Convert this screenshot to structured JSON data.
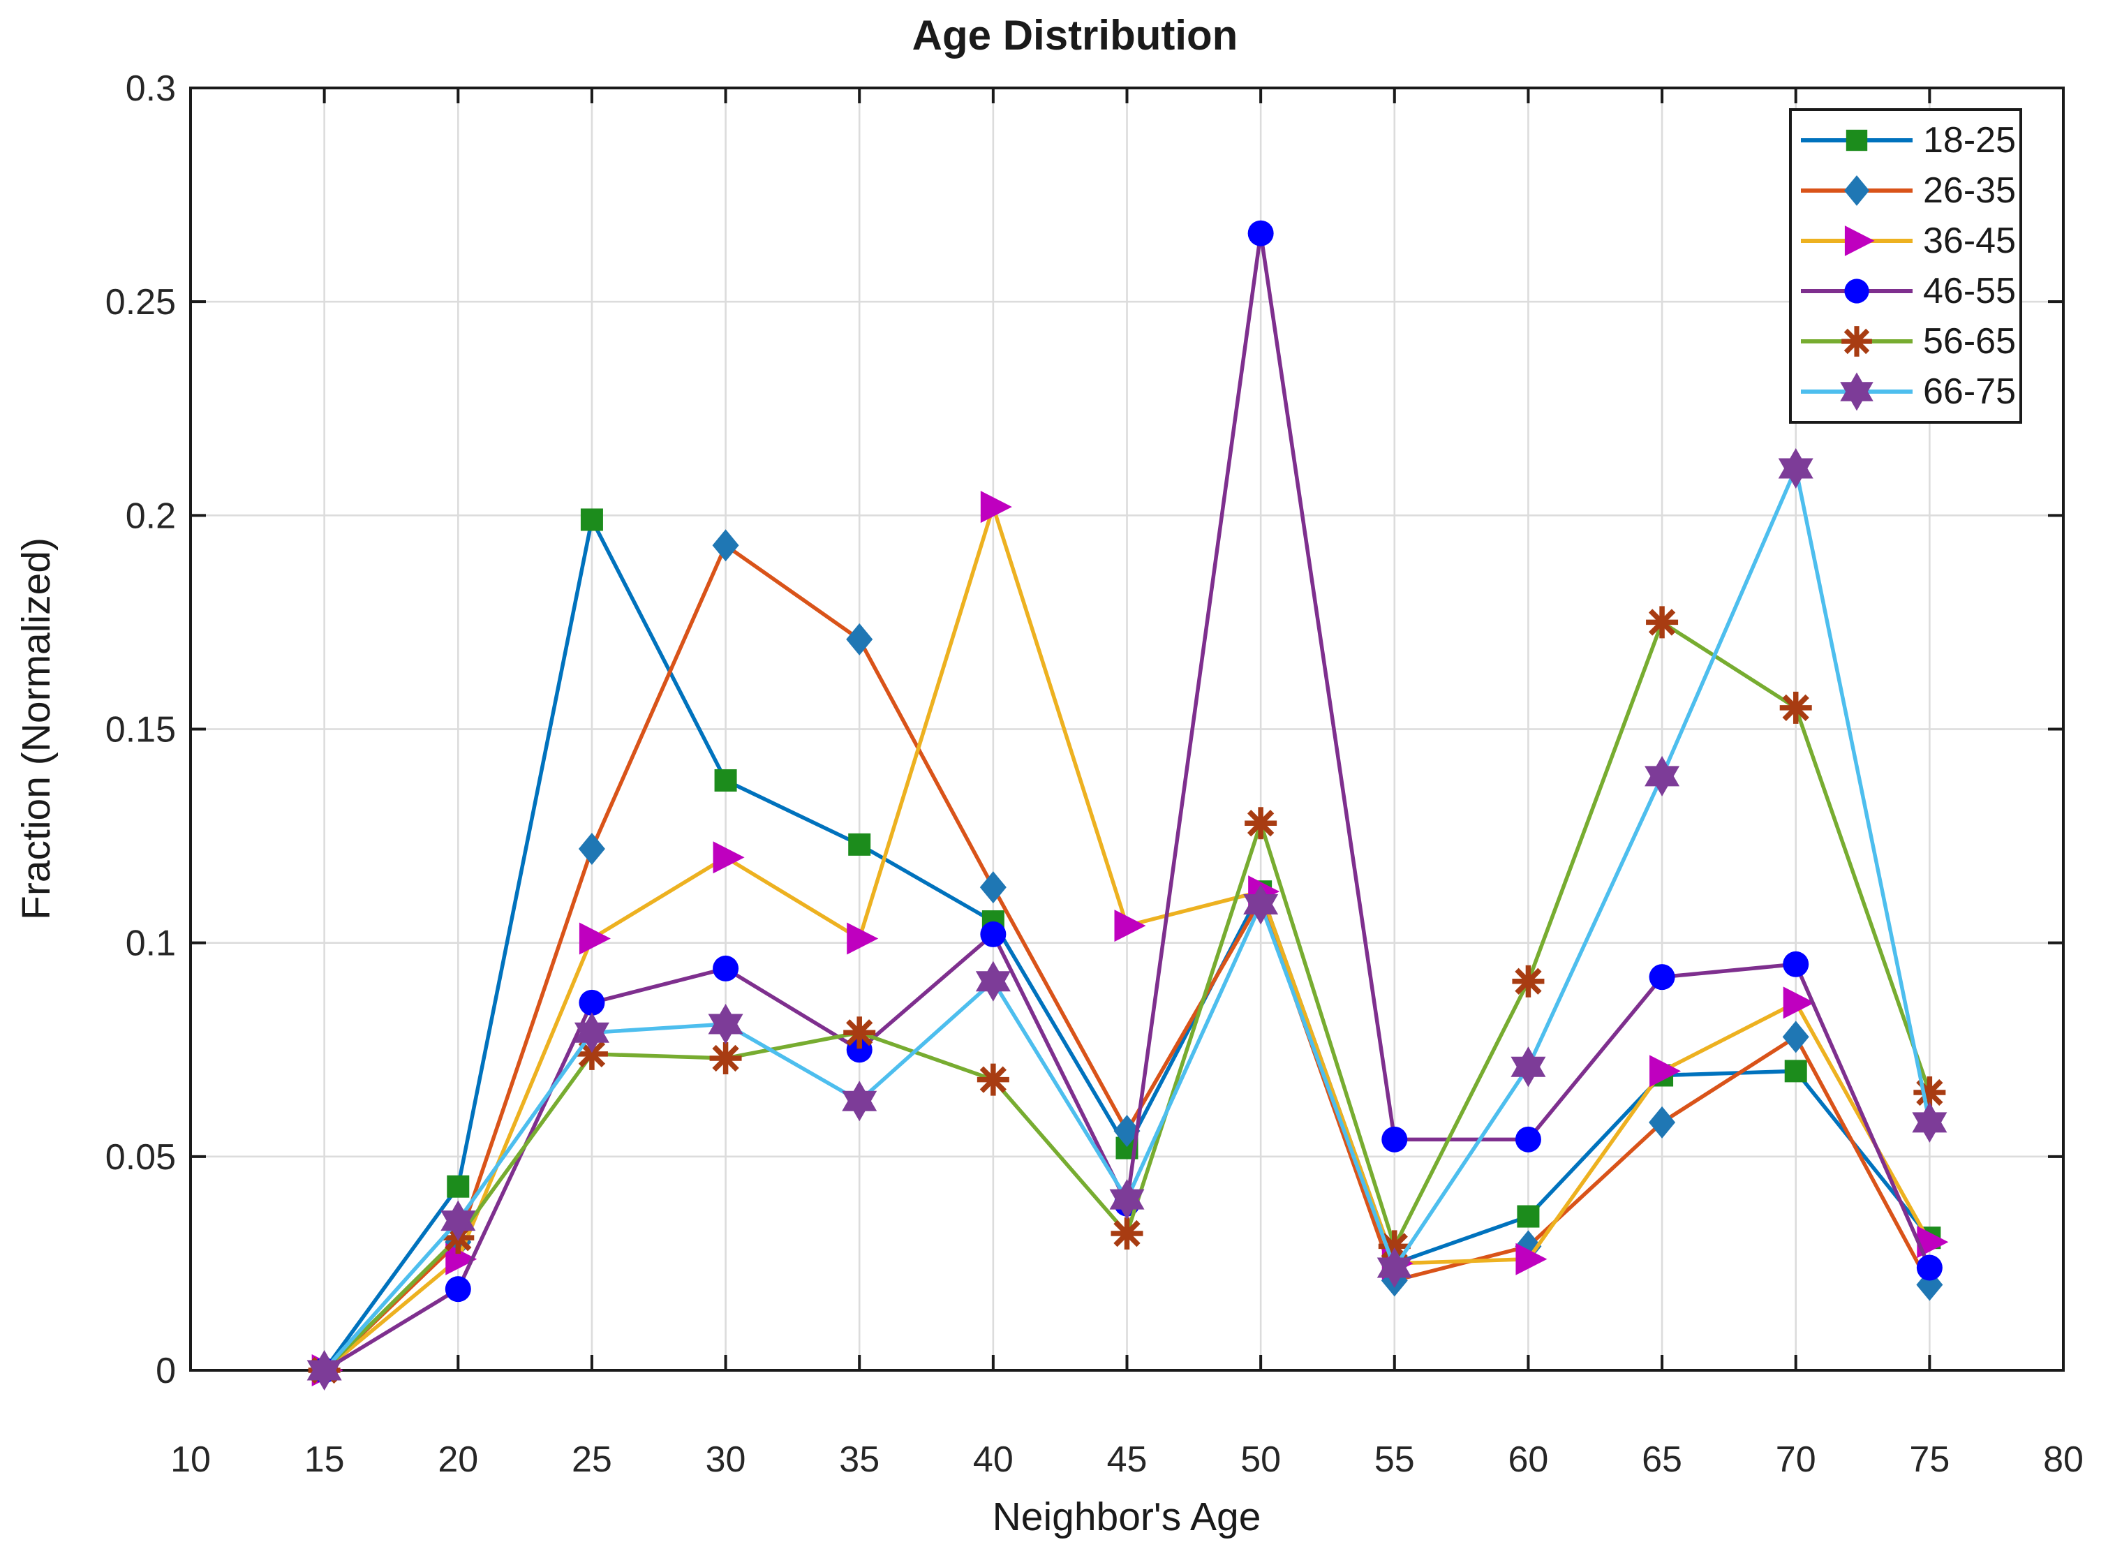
{
  "figure": {
    "title": "Age Distribution",
    "background_color": "#ffffff"
  },
  "axes": {
    "xlabel": "Neighbor's Age",
    "ylabel": "Fraction (Normalized)",
    "x_tick_labels": [
      "10",
      "15",
      "20",
      "25",
      "30",
      "35",
      "40",
      "45",
      "50",
      "55",
      "60",
      "65",
      "70",
      "75",
      "80"
    ],
    "y_tick_labels": [
      "0",
      "0.05",
      "0.1",
      "0.15",
      "0.2",
      "0.25",
      "0.3"
    ],
    "axis_color": "#1a1a1a",
    "grid_color": "#dcdcdc",
    "tick_label_color": "#262626"
  },
  "legend": {
    "position": "top-right",
    "labels": [
      "18-25",
      "26-35",
      "36-45",
      "46-55",
      "56-65",
      "66-75"
    ]
  },
  "chart_data": {
    "type": "line",
    "title": "Age Distribution",
    "xlabel": "Neighbor's Age",
    "ylabel": "Fraction (Normalized)",
    "xlim": [
      10,
      80
    ],
    "ylim": [
      0,
      0.3
    ],
    "x_tick_step": 5,
    "y_tick_step": 0.05,
    "grid": true,
    "legend_position": "top-right",
    "x": [
      15,
      20,
      25,
      30,
      35,
      40,
      45,
      50,
      55,
      60,
      65,
      70,
      75
    ],
    "series": [
      {
        "name": "18-25",
        "line_color": "#0072BD",
        "marker": "square",
        "marker_color": "#1C8C1C",
        "values": [
          0,
          0.043,
          0.199,
          0.138,
          0.123,
          0.105,
          0.052,
          0.112,
          0.025,
          0.036,
          0.069,
          0.07,
          0.031
        ]
      },
      {
        "name": "26-35",
        "line_color": "#D95319",
        "marker": "diamond",
        "marker_color": "#1F77B4",
        "values": [
          0,
          0.03,
          0.122,
          0.193,
          0.171,
          0.113,
          0.056,
          0.11,
          0.021,
          0.029,
          0.058,
          0.078,
          0.02
        ]
      },
      {
        "name": "36-45",
        "line_color": "#EDB120",
        "marker": "triangle-right",
        "marker_color": "#BF00BF",
        "values": [
          0,
          0.026,
          0.101,
          0.12,
          0.101,
          0.202,
          0.104,
          0.112,
          0.025,
          0.026,
          0.07,
          0.086,
          0.03
        ]
      },
      {
        "name": "46-55",
        "line_color": "#7E2F8E",
        "marker": "circle",
        "marker_color": "#0000FF",
        "values": [
          0,
          0.019,
          0.086,
          0.094,
          0.075,
          0.102,
          0.039,
          0.266,
          0.054,
          0.054,
          0.092,
          0.095,
          0.024
        ]
      },
      {
        "name": "56-65",
        "line_color": "#77AC30",
        "marker": "asterisk",
        "marker_color": "#A83C12",
        "values": [
          0,
          0.031,
          0.074,
          0.073,
          0.079,
          0.068,
          0.032,
          0.128,
          0.029,
          0.091,
          0.175,
          0.155,
          0.065
        ]
      },
      {
        "name": "66-75",
        "line_color": "#4DBEEE",
        "marker": "hexagram",
        "marker_color": "#7D3C98",
        "values": [
          0,
          0.035,
          0.079,
          0.081,
          0.063,
          0.091,
          0.04,
          0.109,
          0.024,
          0.071,
          0.139,
          0.211,
          0.058
        ]
      }
    ]
  }
}
